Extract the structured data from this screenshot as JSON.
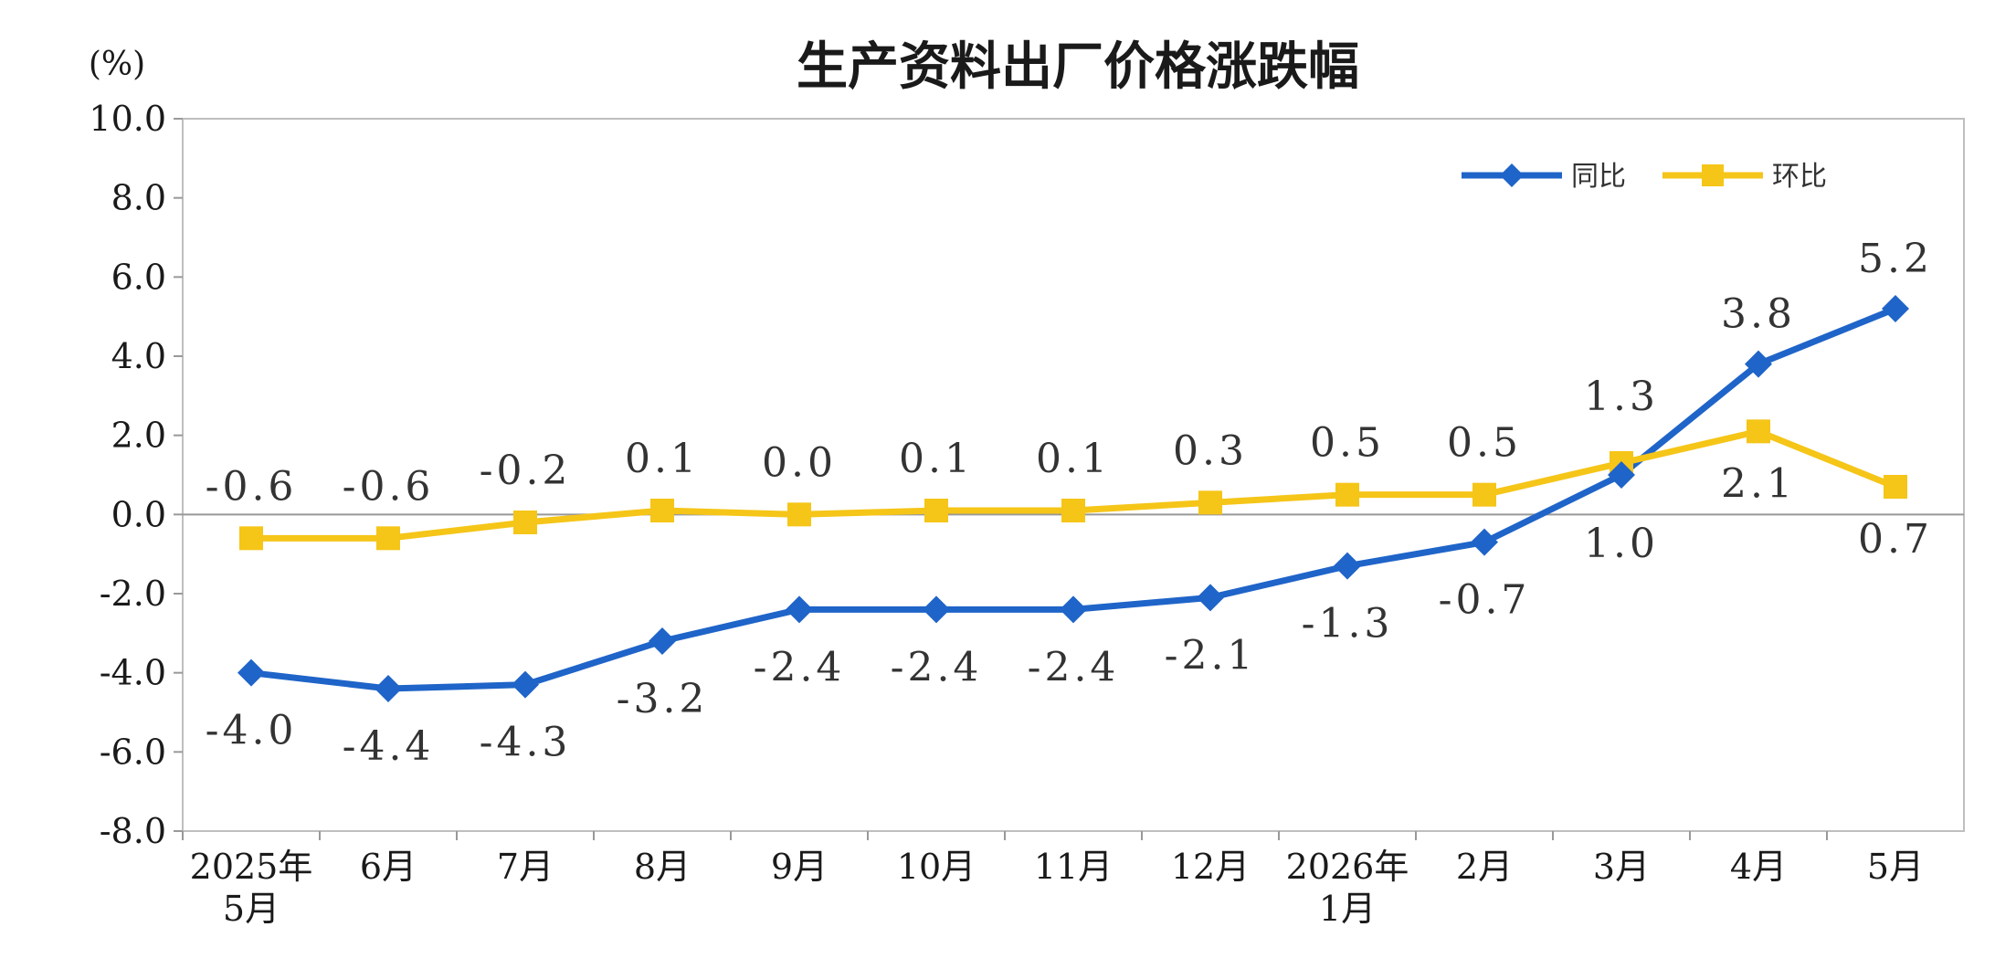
{
  "chart_data": {
    "type": "line",
    "title": "生产资料出厂价格涨跌幅",
    "unit_label": "(%)",
    "categories": [
      [
        "2025年",
        "5月"
      ],
      [
        "6月"
      ],
      [
        "7月"
      ],
      [
        "8月"
      ],
      [
        "9月"
      ],
      [
        "10月"
      ],
      [
        "11月"
      ],
      [
        "12月"
      ],
      [
        "2026年",
        "1月"
      ],
      [
        "2月"
      ],
      [
        "3月"
      ],
      [
        "4月"
      ],
      [
        "5月"
      ]
    ],
    "ylim": [
      -8,
      10
    ],
    "yticks": [
      "10.0",
      "8.0",
      "6.0",
      "4.0",
      "2.0",
      "0.0",
      "-2.0",
      "-4.0",
      "-6.0",
      "-8.0"
    ],
    "ytick_values": [
      10,
      8,
      6,
      4,
      2,
      0,
      -2,
      -4,
      -6,
      -8
    ],
    "grid": false,
    "legend_position": "top-right",
    "series": [
      {
        "name": "同比",
        "color": "#1f64c8",
        "marker": "diamond",
        "values": [
          -4.0,
          -4.4,
          -4.3,
          -3.2,
          -2.4,
          -2.4,
          -2.4,
          -2.1,
          -1.3,
          -0.7,
          1.0,
          3.8,
          5.2
        ],
        "labels": [
          "-4.0",
          "-4.4",
          "-4.3",
          "-3.2",
          "-2.4",
          "-2.4",
          "-2.4",
          "-2.1",
          "-1.3",
          "-0.7",
          "1.0",
          "3.8",
          "5.2"
        ]
      },
      {
        "name": "环比",
        "color": "#f5c518",
        "marker": "square",
        "values": [
          -0.6,
          -0.6,
          -0.2,
          0.1,
          0.0,
          0.1,
          0.1,
          0.3,
          0.5,
          0.5,
          1.3,
          2.1,
          0.7
        ],
        "labels": [
          "-0.6",
          "-0.6",
          "-0.2",
          "0.1",
          "0.0",
          "0.1",
          "0.1",
          "0.3",
          "0.5",
          "0.5",
          "1.3",
          "2.1",
          "0.7"
        ]
      }
    ]
  }
}
